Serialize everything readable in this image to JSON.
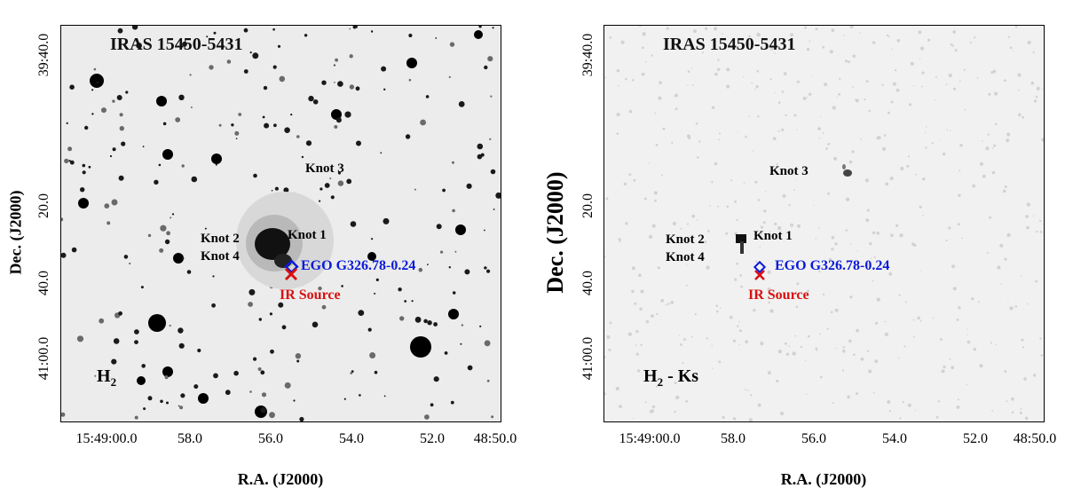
{
  "panels": [
    {
      "object": "IRAS 15450-5431",
      "filter_main": "H",
      "filter_sub": "2",
      "filter_suffix": "",
      "knots": {
        "k1": "Knot 1",
        "k2": "Knot 2",
        "k3": "Knot 3",
        "k4": "Knot 4"
      },
      "ego": "EGO G326.78-0.24",
      "ir_source": "IR Source",
      "x_ticks": [
        "15:49:00.0",
        "58.0",
        "56.0",
        "54.0",
        "52.0",
        "48:50.0"
      ],
      "y_ticks": [
        "39:40.0",
        "20.0",
        "40.0",
        "41:00.0"
      ],
      "xlabel": "R.A. (J2000)",
      "ylabel": "Dec. (J2000)"
    },
    {
      "object": "IRAS 15450-5431",
      "filter_main": "H",
      "filter_sub": "2",
      "filter_suffix": " - Ks",
      "knots": {
        "k1": "Knot 1",
        "k2": "Knot 2",
        "k3": "Knot 3",
        "k4": "Knot 4"
      },
      "ego": "EGO G326.78-0.24",
      "ir_source": "IR Source",
      "x_ticks": [
        "15:49:00.0",
        "58.0",
        "56.0",
        "54.0",
        "52.0",
        "48:50.0"
      ],
      "y_ticks": [
        "39:40.0",
        "20.0",
        "40.0",
        "41:00.0"
      ],
      "xlabel": "R.A. (J2000)",
      "ylabel": "Dec. (J2000)"
    }
  ],
  "colors": {
    "ego_marker": "#0a1ad8",
    "ir_marker": "#d81010",
    "stars": "#000000"
  }
}
